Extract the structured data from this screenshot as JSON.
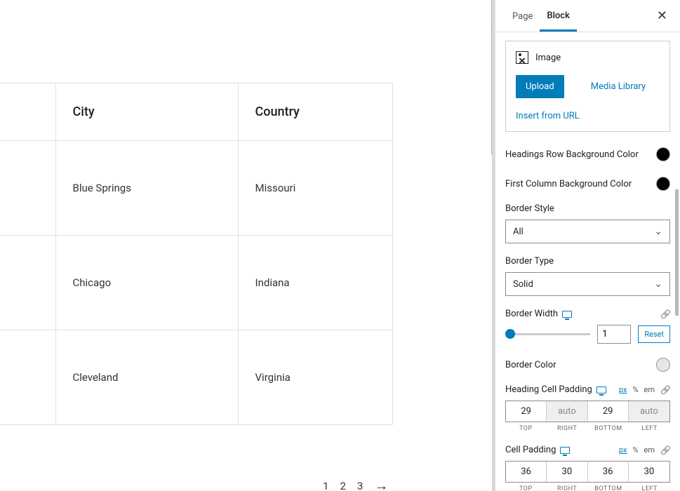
{
  "table": {
    "headers": [
      "",
      "City",
      "Country"
    ],
    "rows": [
      [
        "",
        "Blue Springs",
        "Missouri"
      ],
      [
        "",
        "Chicago",
        "Indiana"
      ],
      [
        "",
        "Cleveland",
        "Virginia"
      ]
    ]
  },
  "pagination": {
    "p1": "1",
    "p2": "2",
    "p3": "3"
  },
  "sidebar": {
    "tabs": {
      "page": "Page",
      "block": "Block"
    },
    "image_panel": {
      "label": "Image",
      "upload": "Upload",
      "media_library": "Media Library",
      "insert_url": "Insert from URL"
    },
    "headings_row_bg": {
      "label": "Headings Row Background Color",
      "color": "#000000"
    },
    "first_col_bg": {
      "label": "First Column Background Color",
      "color": "#000000"
    },
    "border_style": {
      "label": "Border Style",
      "value": "All"
    },
    "border_type": {
      "label": "Border Type",
      "value": "Solid"
    },
    "border_width": {
      "label": "Border Width",
      "value": "1",
      "reset": "Reset"
    },
    "border_color": {
      "label": "Border Color",
      "color": "#e6e6e6"
    },
    "heading_cell_padding": {
      "label": "Heading Cell Padding",
      "units": {
        "px": "px",
        "pct": "%",
        "em": "em"
      },
      "values": {
        "top": "29",
        "right": "auto",
        "bottom": "29",
        "left": "auto"
      },
      "labels": {
        "top": "TOP",
        "right": "RIGHT",
        "bottom": "BOTTOM",
        "left": "LEFT"
      }
    },
    "cell_padding": {
      "label": "Cell Padding",
      "units": {
        "px": "px",
        "pct": "%",
        "em": "em"
      },
      "values": {
        "top": "36",
        "right": "30",
        "bottom": "36",
        "left": "30"
      },
      "labels": {
        "top": "TOP",
        "right": "RIGHT",
        "bottom": "BOTTOM",
        "left": "LEFT"
      }
    }
  }
}
